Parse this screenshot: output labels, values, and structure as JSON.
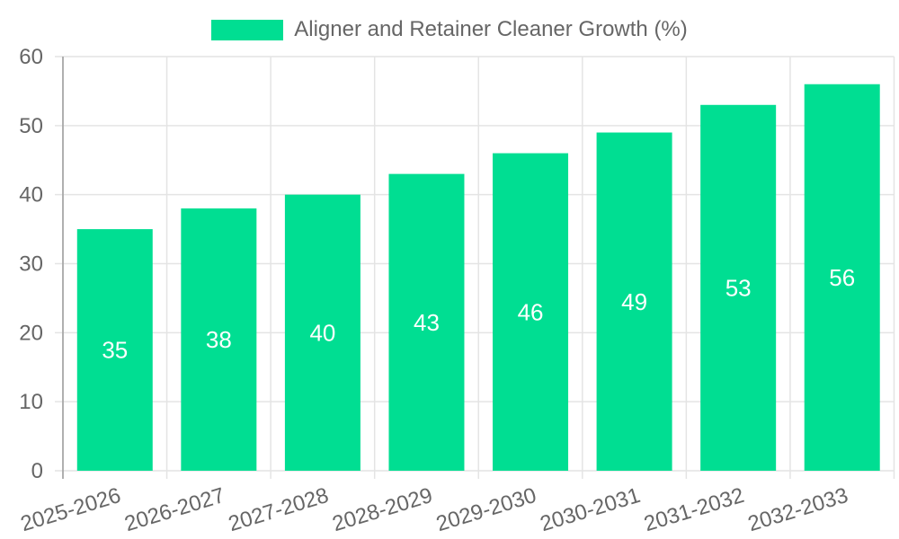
{
  "page": {
    "background_color": "#ffffff"
  },
  "legend": {
    "label": "Aligner and Retainer Cleaner Growth (%)",
    "swatch_color": "#00de92",
    "text_color": "#666666",
    "position": "top"
  },
  "chart_data": {
    "type": "bar",
    "title": "",
    "categories": [
      "2025-2026",
      "2026-2027",
      "2027-2028",
      "2028-2029",
      "2029-2030",
      "2030-2031",
      "2031-2032",
      "2032-2033"
    ],
    "series": [
      {
        "name": "Aligner and Retainer Cleaner Growth (%)",
        "values": [
          35,
          38,
          40,
          43,
          46,
          49,
          53,
          56
        ]
      }
    ],
    "xlabel": "",
    "ylabel": "",
    "ylim": [
      0,
      60
    ],
    "ytick_step": 10,
    "ytick_labels": [
      "0",
      "10",
      "20",
      "30",
      "40",
      "50",
      "60"
    ],
    "grid": true,
    "legend_position": "top",
    "bar_color": "#00de92",
    "bar_value_label_color": "#ffffff",
    "axis_text_color": "#666666",
    "grid_color": "#e4e4e4",
    "axis_line_color": "#9b9b9b",
    "x_label_rotation_deg": -17
  }
}
